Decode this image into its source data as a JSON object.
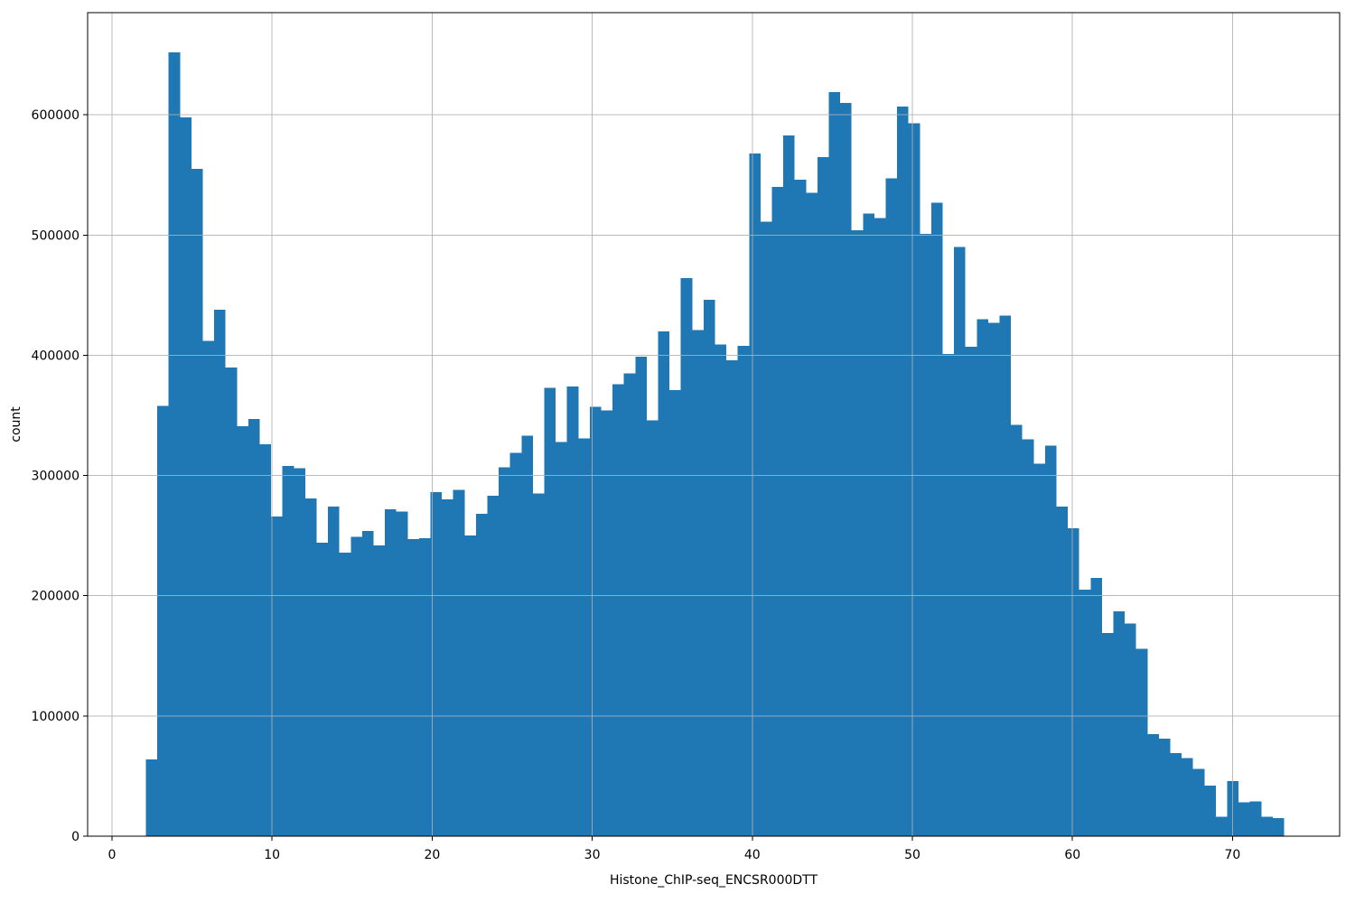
{
  "figure": {
    "background": "#ffffff",
    "bar_color": "#1f77b4",
    "grid_color": "#b0b0b0",
    "spine_color": "#000000",
    "tick_color": "#000000"
  },
  "chart_data": {
    "type": "bar",
    "subtype": "histogram",
    "title": "",
    "xlabel": "Histone_ChIP-seq_ENCSR000DTT",
    "ylabel": "count",
    "bin_start": 2.12,
    "bin_width": 0.711,
    "counts": [
      64000,
      358000,
      652000,
      598000,
      555000,
      412000,
      438000,
      390000,
      341000,
      347000,
      326000,
      266000,
      308000,
      306000,
      281000,
      244000,
      274000,
      236000,
      249000,
      254000,
      242000,
      272000,
      270000,
      247000,
      248000,
      286000,
      280000,
      288000,
      250000,
      268000,
      283000,
      307000,
      319000,
      333000,
      285000,
      373000,
      328000,
      374000,
      331000,
      357000,
      354000,
      376000,
      385000,
      399000,
      346000,
      420000,
      371000,
      464000,
      421000,
      446000,
      409000,
      396000,
      408000,
      568000,
      511000,
      540000,
      583000,
      546000,
      535000,
      565000,
      619000,
      610000,
      504000,
      518000,
      514000,
      547000,
      607000,
      593000,
      501000,
      527000,
      401000,
      490000,
      407000,
      430000,
      427000,
      433000,
      342000,
      330000,
      310000,
      325000,
      274000,
      256000,
      205000,
      215000,
      169000,
      187000,
      177000,
      156000,
      85000,
      81000,
      69000,
      65000,
      56000,
      42000,
      16000,
      46000,
      28000,
      29000,
      16000,
      15000
    ],
    "xlim": [
      -1.52,
      76.69
    ],
    "ylim": [
      0,
      685000
    ],
    "xticks": [
      0,
      10,
      20,
      30,
      40,
      50,
      60,
      70
    ],
    "yticks": [
      0,
      100000,
      200000,
      300000,
      400000,
      500000,
      600000
    ],
    "grid": true,
    "legend": "none"
  }
}
